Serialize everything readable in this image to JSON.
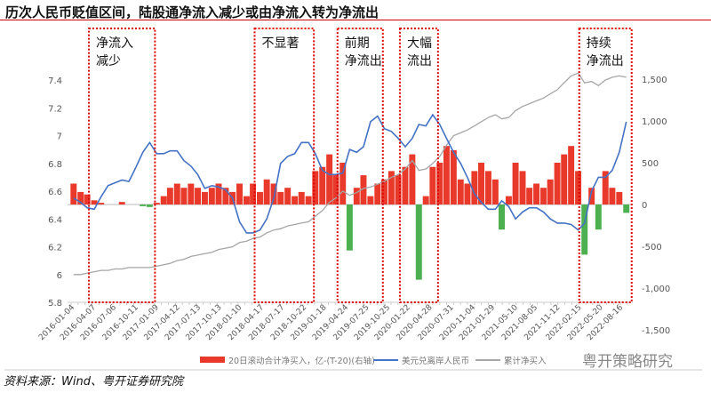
{
  "title": "历次人民币贬值区间，陆股通净流入减少或由净流入转为净流出",
  "source": "资料来源：Wind、粤开证券研究院",
  "watermark": "粤开策略研究",
  "chart_data": {
    "type": "bar+line",
    "x_tick_labels": [
      "2016-01-04",
      "2016-04-07",
      "2016-07-06",
      "2016-10-11",
      "2017-01-09",
      "2017-04-12",
      "2017-07-13",
      "2017-10-13",
      "2018-01-10",
      "2018-04-17",
      "2018-07-17",
      "2018-10-22",
      "2019-01-18",
      "2019-04-24",
      "2019-07-25",
      "2019-10-25",
      "2020-01-22",
      "2020-04-28",
      "2020-07-31",
      "2020-11-04",
      "2021-01-29",
      "2021-05-10",
      "2021-08-05",
      "2021-11-12",
      "2022-02-15",
      "2022-05-20",
      "2022-08-16"
    ],
    "left_axis": {
      "ticks": [
        "5.8",
        "6",
        "6.2",
        "6.4",
        "6.6",
        "6.8",
        "7",
        "7.2",
        "7.4"
      ],
      "range": [
        5.8,
        7.5
      ]
    },
    "right_axis": {
      "ticks": [
        "-1,500",
        "-1,000",
        "-500",
        "0",
        "500",
        "1,000",
        "1,500"
      ],
      "range": [
        -1500,
        1500
      ]
    },
    "months": [
      "2016-01",
      "2016-02",
      "2016-03",
      "2016-04",
      "2016-05",
      "2016-06",
      "2016-07",
      "2016-08",
      "2016-09",
      "2016-10",
      "2016-11",
      "2016-12",
      "2017-01",
      "2017-02",
      "2017-03",
      "2017-04",
      "2017-05",
      "2017-06",
      "2017-07",
      "2017-08",
      "2017-09",
      "2017-10",
      "2017-11",
      "2017-12",
      "2018-01",
      "2018-02",
      "2018-03",
      "2018-04",
      "2018-05",
      "2018-06",
      "2018-07",
      "2018-08",
      "2018-09",
      "2018-10",
      "2018-11",
      "2018-12",
      "2019-01",
      "2019-02",
      "2019-03",
      "2019-04",
      "2019-05",
      "2019-06",
      "2019-07",
      "2019-08",
      "2019-09",
      "2019-10",
      "2019-11",
      "2019-12",
      "2020-01",
      "2020-02",
      "2020-03",
      "2020-04",
      "2020-05",
      "2020-06",
      "2020-07",
      "2020-08",
      "2020-09",
      "2020-10",
      "2020-11",
      "2020-12",
      "2021-01",
      "2021-02",
      "2021-03",
      "2021-04",
      "2021-05",
      "2021-06",
      "2021-07",
      "2021-08",
      "2021-09",
      "2021-10",
      "2021-11",
      "2021-12",
      "2022-01",
      "2022-02",
      "2022-03",
      "2022-04",
      "2022-05",
      "2022-06",
      "2022-07",
      "2022-08",
      "2022-09"
    ],
    "series": [
      {
        "name": "20日滚动合计净买入，亿-(T-20)(右轴)",
        "type": "bar",
        "axis": "right",
        "positive_color": "#e8392b",
        "negative_color": "#4caf50",
        "values": [
          250,
          150,
          120,
          50,
          20,
          0,
          0,
          30,
          0,
          0,
          -20,
          -30,
          20,
          100,
          200,
          250,
          200,
          250,
          200,
          150,
          200,
          250,
          200,
          150,
          250,
          100,
          250,
          150,
          300,
          250,
          150,
          200,
          100,
          150,
          100,
          400,
          450,
          600,
          350,
          500,
          -550,
          200,
          350,
          100,
          250,
          300,
          400,
          350,
          450,
          600,
          -900,
          100,
          450,
          500,
          700,
          650,
          300,
          250,
          400,
          500,
          400,
          300,
          -300,
          100,
          500,
          400,
          200,
          250,
          200,
          300,
          500,
          600,
          700,
          400,
          -600,
          200,
          -300,
          400,
          200,
          150,
          -100
        ]
      },
      {
        "name": "美元兑离岸人民币",
        "type": "line",
        "axis": "left",
        "color": "#4472c4",
        "values": [
          6.55,
          6.52,
          6.48,
          6.47,
          6.56,
          6.64,
          6.66,
          6.68,
          6.67,
          6.77,
          6.88,
          6.95,
          6.87,
          6.87,
          6.89,
          6.89,
          6.82,
          6.78,
          6.72,
          6.62,
          6.64,
          6.63,
          6.61,
          6.55,
          6.38,
          6.3,
          6.3,
          6.32,
          6.4,
          6.55,
          6.8,
          6.85,
          6.87,
          6.95,
          6.95,
          6.87,
          6.75,
          6.72,
          6.72,
          6.73,
          6.9,
          6.88,
          6.92,
          7.1,
          7.14,
          7.05,
          7.03,
          6.98,
          6.92,
          6.98,
          7.08,
          7.07,
          7.15,
          7.08,
          6.98,
          6.88,
          6.8,
          6.7,
          6.58,
          6.52,
          6.47,
          6.47,
          6.53,
          6.49,
          6.4,
          6.45,
          6.48,
          6.48,
          6.45,
          6.4,
          6.37,
          6.37,
          6.36,
          6.32,
          6.37,
          6.6,
          6.7,
          6.7,
          6.75,
          6.88,
          7.1
        ]
      },
      {
        "name": "累计净买入",
        "type": "line",
        "axis": "left",
        "color": "#a6a6a6",
        "values": [
          6.0,
          6.0,
          6.01,
          6.02,
          6.03,
          6.03,
          6.04,
          6.04,
          6.05,
          6.05,
          6.05,
          6.05,
          6.06,
          6.07,
          6.08,
          6.1,
          6.11,
          6.13,
          6.14,
          6.15,
          6.16,
          6.18,
          6.19,
          6.2,
          6.23,
          6.24,
          6.26,
          6.27,
          6.3,
          6.32,
          6.33,
          6.35,
          6.36,
          6.37,
          6.38,
          6.42,
          6.46,
          6.52,
          6.55,
          6.6,
          6.57,
          6.59,
          6.62,
          6.63,
          6.65,
          6.67,
          6.7,
          6.72,
          6.76,
          6.82,
          6.75,
          6.76,
          6.8,
          6.85,
          6.93,
          7.0,
          7.02,
          7.04,
          7.07,
          7.1,
          7.13,
          7.15,
          7.12,
          7.13,
          7.18,
          7.21,
          7.23,
          7.25,
          7.27,
          7.3,
          7.33,
          7.38,
          7.43,
          7.45,
          7.38,
          7.39,
          7.36,
          7.4,
          7.42,
          7.43,
          7.42
        ]
      }
    ],
    "highlight_periods": [
      {
        "label": "净流入\n减少",
        "start": "2016-04",
        "end": "2016-12"
      },
      {
        "label": "不显著",
        "start": "2018-04",
        "end": "2018-11"
      },
      {
        "label": "前期\n净流出",
        "start": "2019-04",
        "end": "2019-09"
      },
      {
        "label": "大幅\n流出",
        "start": "2020-01",
        "end": "2020-05"
      },
      {
        "label": "持续\n净流出",
        "start": "2022-03",
        "end": "2022-09"
      }
    ]
  }
}
